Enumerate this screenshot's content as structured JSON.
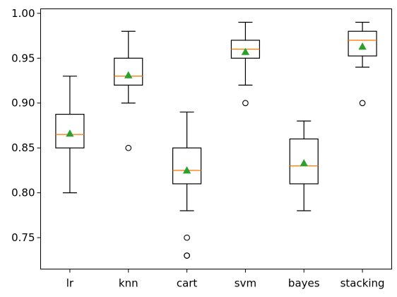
{
  "chart_data": {
    "type": "box",
    "title": "",
    "xlabel": "",
    "ylabel": "",
    "ylim": [
      0.715,
      1.005
    ],
    "y_ticks": [
      0.75,
      0.8,
      0.85,
      0.9,
      0.95,
      1.0
    ],
    "y_tick_labels": [
      "0.75",
      "0.80",
      "0.85",
      "0.90",
      "0.95",
      "1.00"
    ],
    "grid": false,
    "legend": "none",
    "colors": {
      "box": "#000000",
      "median": "#ff7f0e",
      "mean": "#2ca02c",
      "outlier": "#000000"
    },
    "categories": [
      "lr",
      "knn",
      "cart",
      "svm",
      "bayes",
      "stacking"
    ],
    "boxes": [
      {
        "label": "lr",
        "whisker_low": 0.8,
        "q1": 0.85,
        "median": 0.865,
        "q3": 0.8875,
        "whisker_high": 0.93,
        "mean": 0.866,
        "outliers": []
      },
      {
        "label": "knn",
        "whisker_low": 0.9,
        "q1": 0.92,
        "median": 0.93,
        "q3": 0.95,
        "whisker_high": 0.98,
        "mean": 0.931,
        "outliers": [
          0.85
        ]
      },
      {
        "label": "cart",
        "whisker_low": 0.78,
        "q1": 0.81,
        "median": 0.825,
        "q3": 0.85,
        "whisker_high": 0.89,
        "mean": 0.825,
        "outliers": [
          0.75,
          0.73,
          0.73
        ]
      },
      {
        "label": "svm",
        "whisker_low": 0.92,
        "q1": 0.95,
        "median": 0.96,
        "q3": 0.97,
        "whisker_high": 0.99,
        "mean": 0.957,
        "outliers": [
          0.9
        ]
      },
      {
        "label": "bayes",
        "whisker_low": 0.78,
        "q1": 0.81,
        "median": 0.83,
        "q3": 0.86,
        "whisker_high": 0.88,
        "mean": 0.833,
        "outliers": []
      },
      {
        "label": "stacking",
        "whisker_low": 0.94,
        "q1": 0.9525,
        "median": 0.97,
        "q3": 0.98,
        "whisker_high": 0.99,
        "mean": 0.963,
        "outliers": [
          0.9
        ]
      }
    ]
  }
}
